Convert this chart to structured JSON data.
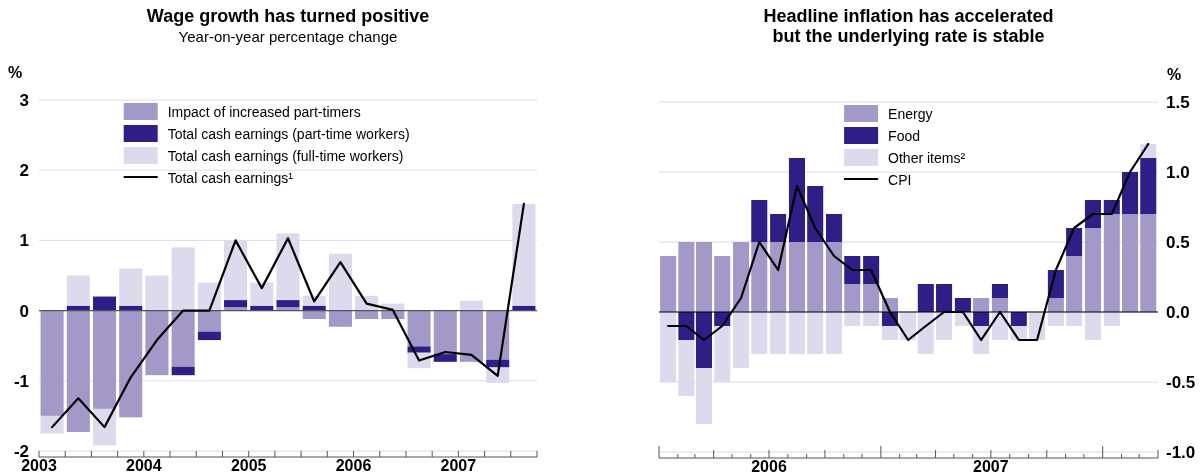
{
  "chart_data": [
    {
      "type": "bar",
      "title": "Wage growth has turned positive",
      "subtitle": "Year-on-year percentage change",
      "ylabel": "%",
      "stacked": true,
      "grid": "y",
      "legend": "top",
      "x": [
        2003.125,
        2003.375,
        2003.625,
        2003.875,
        2004.125,
        2004.375,
        2004.625,
        2004.875,
        2005.125,
        2005.375,
        2005.625,
        2005.875,
        2006.125,
        2006.375,
        2006.625,
        2006.875,
        2007.125,
        2007.375,
        2007.625
      ],
      "xlim": [
        2003,
        2007.75
      ],
      "xticks": [
        2003,
        {
          "value": 2003.25,
          "label": null
        },
        {
          "value": 2003.5,
          "label": null
        },
        {
          "value": 2003.75,
          "label": null
        },
        2004,
        {
          "value": 2004.25,
          "label": null
        },
        {
          "value": 2004.5,
          "label": null
        },
        {
          "value": 2004.75,
          "label": null
        },
        2005,
        {
          "value": 2005.25,
          "label": null
        },
        {
          "value": 2005.5,
          "label": null
        },
        {
          "value": 2005.75,
          "label": null
        },
        2006,
        {
          "value": 2006.25,
          "label": null
        },
        {
          "value": 2006.5,
          "label": null
        },
        {
          "value": 2006.75,
          "label": null
        },
        2007,
        {
          "value": 2007.25,
          "label": null
        },
        {
          "value": 2007.5,
          "label": null
        },
        {
          "value": 2007.75,
          "label": null
        }
      ],
      "ylim": [
        -2,
        3
      ],
      "yticks": [
        -2,
        -1,
        0,
        1,
        2,
        3
      ],
      "ref_lines": [
        {
          "axis": "y",
          "value": 0,
          "color": "#555555"
        }
      ],
      "series": [
        {
          "name": "Impact of increased part-timers",
          "color": "#a398c8",
          "values": [
            -1.5,
            -1.73,
            -1.4,
            -1.52,
            -0.92,
            -0.8,
            -0.3,
            0.05,
            0,
            0.05,
            -0.12,
            -0.23,
            -0.12,
            -0.12,
            -0.51,
            -0.62,
            -0.73,
            -0.7,
            0
          ]
        },
        {
          "name": "Total cash earnings (part-time workers)",
          "color": "#2e1f87",
          "values": [
            0,
            0.07,
            0.2,
            0.07,
            0,
            -0.12,
            -0.12,
            0.1,
            0.07,
            0.1,
            0.07,
            0,
            0,
            0,
            -0.09,
            -0.11,
            0,
            -0.11,
            0.07
          ]
        },
        {
          "name": "Total cash earnings (full-time workers)",
          "color": "#dddaee",
          "values": [
            -0.25,
            0.43,
            -0.52,
            0.53,
            0.5,
            0.9,
            0.4,
            0.85,
            0.33,
            0.95,
            0.14,
            0.81,
            0.21,
            0.1,
            -0.22,
            null,
            0.14,
            -0.22,
            1.45
          ]
        },
        {
          "name": "Total cash earnings¹",
          "type": "line",
          "color": "#000000",
          "values": [
            -1.66,
            -1.25,
            -1.66,
            -0.95,
            -0.42,
            0,
            0,
            1.0,
            0.32,
            1.03,
            0.13,
            0.69,
            0.1,
            0.01,
            -0.71,
            -0.59,
            -0.63,
            -0.93,
            1.52
          ]
        }
      ]
    },
    {
      "type": "bar",
      "title": "Headline inflation has accelerated but the underlying rate is stable",
      "y2label": "%",
      "stacked": true,
      "grid": "y",
      "legend": "top",
      "x": [
        "2006-01-16",
        "2006-02-15",
        "2006-03-16",
        "2006-04-15",
        "2006-05-16",
        "2006-06-15",
        "2006-07-16",
        "2006-08-16",
        "2006-09-15",
        "2006-10-16",
        "2006-11-15",
        "2006-12-16",
        "2007-01-16",
        "2007-02-15",
        "2007-03-16",
        "2007-04-15",
        "2007-05-16",
        "2007-06-15",
        "2007-07-16",
        "2007-08-16",
        "2007-09-15",
        "2007-10-16",
        "2007-11-15",
        "2007-12-16",
        "2008-01-16",
        "2008-02-15",
        "2008-03-16"
      ],
      "xlim": [
        "2006-01",
        "2008-04"
      ],
      "xticks": [
        {
          "value": "2006-01",
          "label": null
        },
        {
          "value": "2006-02",
          "label": null
        },
        {
          "value": "2006-03",
          "label": null
        },
        {
          "value": "2006-04",
          "label": null
        },
        {
          "value": "2006-05",
          "label": null
        },
        {
          "value": "2006-06",
          "label": null
        },
        {
          "value": "2006-07",
          "label": "2006"
        },
        {
          "value": "2006-08",
          "label": null
        },
        {
          "value": "2006-09",
          "label": null
        },
        {
          "value": "2006-10",
          "label": null
        },
        {
          "value": "2006-11",
          "label": null
        },
        {
          "value": "2006-12",
          "label": null
        },
        {
          "value": "2007-01",
          "label": null
        },
        {
          "value": "2007-02",
          "label": null
        },
        {
          "value": "2007-03",
          "label": null
        },
        {
          "value": "2007-04",
          "label": null
        },
        {
          "value": "2007-05",
          "label": null
        },
        {
          "value": "2007-06",
          "label": null
        },
        {
          "value": "2007-07",
          "label": "2007"
        },
        {
          "value": "2007-08",
          "label": null
        },
        {
          "value": "2007-09",
          "label": null
        },
        {
          "value": "2007-10",
          "label": null
        },
        {
          "value": "2007-11",
          "label": null
        },
        {
          "value": "2007-12",
          "label": null
        },
        {
          "value": "2008-01",
          "label": null
        },
        {
          "value": "2008-02",
          "label": null
        },
        {
          "value": "2008-03",
          "label": null
        },
        {
          "value": "2008-04",
          "label": null
        }
      ],
      "y2lim": [
        -1,
        1.5
      ],
      "y2ticks": [
        {
          "value": -1,
          "label": "-1.0"
        },
        {
          "value": -0.5,
          "label": "-0.5"
        },
        {
          "value": 0,
          "label": "0.0"
        },
        {
          "value": 0.5,
          "label": "0.5"
        },
        {
          "value": 1,
          "label": "1.0"
        },
        {
          "value": 1.5,
          "label": "1.5"
        }
      ],
      "ref_lines": [
        {
          "axis": "y2",
          "value": 0,
          "color": "#000000"
        }
      ],
      "series": [
        {
          "name": "Energy",
          "color": "#a398c8",
          "axis": "y2",
          "values": [
            0.4,
            0.5,
            0.5,
            0.4,
            0.5,
            0.5,
            0.5,
            0.5,
            0.5,
            0.5,
            0.2,
            0.2,
            0.1,
            0,
            0,
            0,
            0,
            0.1,
            0.1,
            0,
            0,
            0.1,
            0.4,
            0.6,
            0.7,
            0.7,
            0.7
          ]
        },
        {
          "name": "Food",
          "color": "#2e1f87",
          "axis": "y2",
          "values": [
            0,
            -0.2,
            -0.4,
            -0.1,
            0,
            0.3,
            0.2,
            0.6,
            0.4,
            0.2,
            0.2,
            0.2,
            -0.1,
            0,
            0.2,
            0.2,
            0.1,
            -0.1,
            0.1,
            -0.1,
            0,
            0.2,
            0.2,
            0.2,
            0.1,
            0.3,
            0.4
          ]
        },
        {
          "name": "Other items²",
          "color": "#dddaee",
          "axis": "y2",
          "values": [
            -0.5,
            -0.4,
            -0.4,
            -0.4,
            -0.4,
            -0.3,
            -0.3,
            -0.3,
            -0.3,
            -0.3,
            -0.1,
            -0.1,
            -0.1,
            -0.2,
            -0.3,
            -0.2,
            -0.1,
            -0.2,
            -0.2,
            -0.1,
            -0.2,
            -0.1,
            -0.1,
            -0.2,
            -0.1,
            0,
            0.1
          ]
        },
        {
          "name": "CPI",
          "type": "line",
          "color": "#000000",
          "axis": "y2",
          "values": [
            -0.1,
            -0.1,
            -0.2,
            -0.1,
            0.1,
            0.5,
            0.3,
            0.9,
            0.6,
            0.4,
            0.3,
            0.3,
            0,
            -0.2,
            -0.1,
            0,
            0,
            -0.2,
            0,
            -0.2,
            -0.2,
            0.3,
            0.6,
            0.7,
            0.7,
            1.0,
            1.2
          ]
        }
      ]
    }
  ]
}
